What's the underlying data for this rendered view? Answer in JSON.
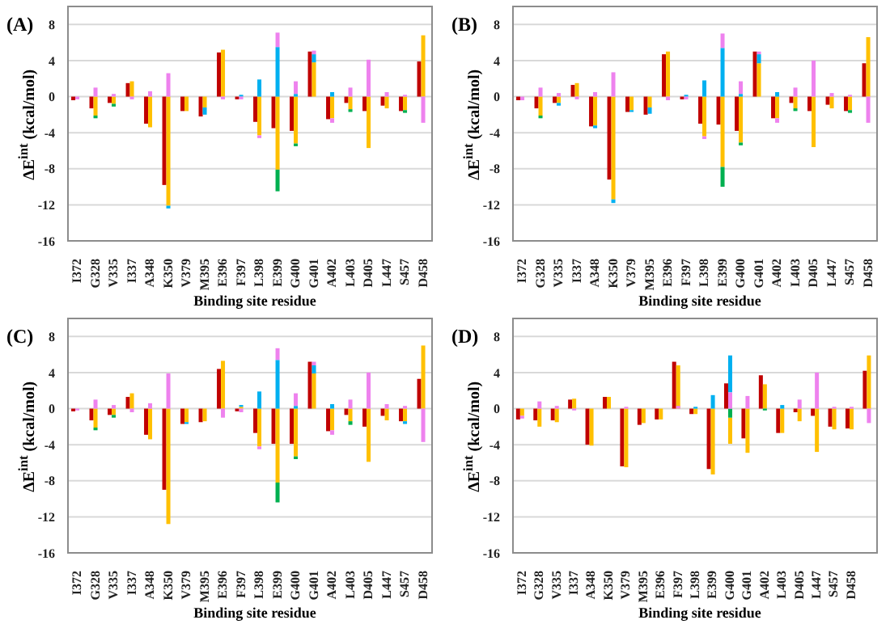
{
  "chart_data": [
    {
      "type": "bar",
      "title": "(A)",
      "xlabel": "Binding site residue",
      "ylabel": "ΔE$^{int}$ (kcal/mol)",
      "grid": "y",
      "legend": false,
      "ylim": [
        -16,
        10
      ],
      "yticks": [
        -16,
        -12,
        -8,
        -4,
        0,
        4,
        8
      ],
      "categories": [
        "I372",
        "G328",
        "V335",
        "I337",
        "A348",
        "K350",
        "V379",
        "M395",
        "E396",
        "F397",
        "L398",
        "E399",
        "G400",
        "G401",
        "A402",
        "L403",
        "D405",
        "L447",
        "S457",
        "D458"
      ],
      "series": [
        {
          "color": "#c00000",
          "values": [
            -0.4,
            -1.3,
            -0.7,
            1.5,
            -3.0,
            -9.8,
            -1.6,
            -2.2,
            4.9,
            -0.3,
            -2.8,
            -3.5,
            -3.8,
            5.0,
            -2.5,
            -0.7,
            -1.6,
            -1.0,
            -1.6,
            3.9
          ]
        },
        {
          "color": "#ffc000",
          "values": [
            null,
            -2.1,
            -0.8,
            1.7,
            -3.4,
            -12.1,
            -1.6,
            -1.2,
            5.2,
            null,
            -4.3,
            -8.1,
            -5.2,
            3.8,
            -2.4,
            -1.4,
            -5.7,
            -1.3,
            -1.5,
            6.8
          ],
          "base": [
            null,
            0,
            0,
            0,
            0,
            0,
            0,
            0,
            0,
            null,
            0,
            0,
            0,
            0,
            0,
            0,
            0,
            0,
            0,
            0
          ]
        },
        {
          "color": "#00b050",
          "values": [
            null,
            -0.3,
            -0.3,
            null,
            null,
            null,
            null,
            null,
            null,
            null,
            null,
            -2.4,
            -0.3,
            null,
            null,
            -0.3,
            null,
            null,
            -0.3,
            null
          ],
          "base": [
            null,
            -2.1,
            -0.8,
            null,
            null,
            null,
            null,
            null,
            null,
            null,
            null,
            -8.1,
            -5.2,
            null,
            null,
            -1.4,
            null,
            null,
            -1.5,
            null
          ]
        },
        {
          "color": "#00b0f0",
          "values": [
            null,
            null,
            null,
            null,
            null,
            -0.3,
            null,
            -0.8,
            null,
            0.2,
            1.9,
            5.5,
            0.3,
            0.9,
            0.5,
            null,
            null,
            null,
            null,
            null
          ],
          "base": [
            null,
            null,
            null,
            null,
            null,
            -12.1,
            null,
            -1.2,
            null,
            0,
            0,
            0,
            0,
            3.8,
            0,
            null,
            null,
            null,
            null,
            null
          ]
        },
        {
          "color": "#ee82ee",
          "values": [
            -0.3,
            1.0,
            0.3,
            -0.3,
            0.6,
            2.6,
            null,
            null,
            -0.3,
            -0.3,
            -0.3,
            1.6,
            1.4,
            0.4,
            -0.5,
            1.0,
            4.1,
            0.5,
            0.2,
            -2.9
          ],
          "base": [
            0,
            0,
            0,
            0,
            0,
            0,
            null,
            null,
            0,
            0,
            -4.3,
            5.5,
            0.3,
            4.7,
            -2.4,
            0,
            0,
            0,
            0,
            0
          ]
        }
      ]
    },
    {
      "type": "bar",
      "title": "(B)",
      "xlabel": "Binding site residue",
      "ylabel": "ΔE$^{int}$ (kcal/mol)",
      "grid": "y",
      "legend": false,
      "ylim": [
        -16,
        10
      ],
      "yticks": [
        -16,
        -12,
        -8,
        -4,
        0,
        4,
        8
      ],
      "categories": [
        "I372",
        "G328",
        "V335",
        "I337",
        "A348",
        "K350",
        "V379",
        "M395",
        "E396",
        "F397",
        "L398",
        "E399",
        "G400",
        "G401",
        "A402",
        "L403",
        "D405",
        "L447",
        "S457",
        "D458"
      ],
      "series": [
        {
          "color": "#c00000",
          "values": [
            -0.4,
            -1.3,
            -0.7,
            1.3,
            -3.3,
            -9.2,
            -1.7,
            -2.0,
            4.7,
            -0.3,
            -3.0,
            -3.1,
            -3.8,
            5.0,
            -2.4,
            -0.7,
            -1.6,
            -0.9,
            -1.6,
            3.7
          ]
        },
        {
          "color": "#ffc000",
          "values": [
            null,
            -2.1,
            -0.7,
            1.5,
            -3.2,
            -11.4,
            -1.5,
            -1.2,
            5.0,
            null,
            -4.4,
            -7.8,
            -5.1,
            3.7,
            -2.4,
            -1.3,
            -5.6,
            -1.3,
            -1.5,
            6.6
          ],
          "base": [
            null,
            0,
            0,
            0,
            0,
            0,
            0,
            0,
            0,
            null,
            0,
            0,
            0,
            0,
            0,
            0,
            0,
            0,
            0,
            0
          ]
        },
        {
          "color": "#00b050",
          "values": [
            null,
            -0.3,
            null,
            null,
            null,
            null,
            null,
            null,
            null,
            null,
            null,
            -2.2,
            -0.3,
            null,
            null,
            -0.3,
            null,
            null,
            -0.3,
            null
          ],
          "base": [
            null,
            -2.1,
            null,
            null,
            null,
            null,
            null,
            null,
            null,
            null,
            null,
            -7.8,
            -5.1,
            null,
            null,
            -1.3,
            null,
            null,
            -1.5,
            null
          ]
        },
        {
          "color": "#00b0f0",
          "values": [
            null,
            null,
            -0.3,
            null,
            -0.3,
            -0.4,
            -0.2,
            -0.7,
            null,
            0.2,
            1.8,
            5.4,
            0.3,
            1.0,
            0.5,
            null,
            null,
            null,
            null,
            null
          ],
          "base": [
            null,
            null,
            -0.7,
            null,
            -3.2,
            -11.4,
            -1.5,
            -1.2,
            null,
            0,
            0,
            0,
            0,
            3.7,
            0,
            null,
            null,
            null,
            null,
            null
          ]
        },
        {
          "color": "#ee82ee",
          "values": [
            -0.4,
            1.0,
            0.4,
            -0.3,
            0.5,
            2.7,
            null,
            null,
            -0.4,
            -0.3,
            -0.3,
            1.6,
            1.4,
            0.3,
            -0.5,
            1.0,
            4.0,
            0.4,
            0.2,
            -2.9
          ],
          "base": [
            0,
            0,
            0,
            0,
            0,
            0,
            null,
            null,
            0,
            0,
            -4.4,
            5.4,
            0.3,
            4.7,
            -2.4,
            0,
            0,
            0,
            0,
            0
          ]
        }
      ]
    },
    {
      "type": "bar",
      "title": "(C)",
      "xlabel": "Binding site residue",
      "ylabel": "ΔE$^{int}$ (kcal/mol)",
      "grid": "y",
      "legend": false,
      "ylim": [
        -16,
        10
      ],
      "yticks": [
        -16,
        -12,
        -8,
        -4,
        0,
        4,
        8
      ],
      "categories": [
        "I372",
        "G328",
        "V335",
        "I337",
        "A348",
        "K350",
        "V379",
        "M395",
        "E396",
        "F397",
        "L398",
        "E399",
        "G400",
        "G401",
        "A402",
        "L403",
        "D405",
        "L447",
        "S457",
        "D458"
      ],
      "series": [
        {
          "color": "#c00000",
          "values": [
            -0.3,
            -1.3,
            -0.7,
            1.3,
            -2.9,
            -9.0,
            -1.7,
            -1.5,
            4.4,
            -0.3,
            -2.7,
            -3.9,
            -3.9,
            5.2,
            -2.5,
            -0.7,
            -2.0,
            -0.8,
            -1.4,
            3.3
          ]
        },
        {
          "color": "#ffc000",
          "values": [
            null,
            -2.1,
            -0.7,
            1.7,
            -3.4,
            -12.8,
            -1.5,
            -1.4,
            5.3,
            0.2,
            -4.2,
            -8.2,
            -5.3,
            3.9,
            -2.4,
            -1.4,
            -5.9,
            -1.3,
            -1.4,
            7.0
          ],
          "base": [
            null,
            0,
            0,
            0,
            0,
            0,
            0,
            0,
            0,
            0,
            0,
            0,
            0,
            0,
            0,
            0,
            0,
            0,
            0,
            0
          ]
        },
        {
          "color": "#00b050",
          "values": [
            null,
            -0.3,
            -0.3,
            null,
            null,
            null,
            null,
            null,
            null,
            null,
            null,
            -2.2,
            -0.3,
            null,
            null,
            -0.4,
            null,
            null,
            null,
            null
          ],
          "base": [
            null,
            -2.1,
            -0.7,
            null,
            null,
            null,
            null,
            null,
            null,
            null,
            null,
            -8.2,
            -5.3,
            null,
            null,
            -1.4,
            null,
            null,
            null,
            null
          ]
        },
        {
          "color": "#00b0f0",
          "values": [
            null,
            null,
            null,
            null,
            null,
            null,
            -0.2,
            null,
            null,
            0.2,
            1.9,
            5.4,
            0.3,
            0.9,
            0.5,
            null,
            null,
            null,
            -0.3,
            null
          ],
          "base": [
            null,
            null,
            null,
            null,
            null,
            null,
            -1.5,
            null,
            null,
            0.2,
            0,
            0,
            0,
            3.9,
            0,
            null,
            null,
            null,
            -1.4,
            null
          ]
        },
        {
          "color": "#ee82ee",
          "values": [
            -0.2,
            1.0,
            0.4,
            -0.4,
            0.6,
            3.9,
            null,
            null,
            -1.0,
            -0.4,
            -0.3,
            1.3,
            1.4,
            0.4,
            -0.5,
            1.0,
            4.0,
            0.5,
            0.3,
            -3.7
          ],
          "base": [
            0,
            0,
            0,
            0,
            0,
            0,
            null,
            null,
            0,
            0,
            -4.2,
            5.4,
            0.3,
            4.8,
            -2.4,
            0,
            0,
            0,
            0,
            0
          ]
        }
      ]
    },
    {
      "type": "bar",
      "title": "(D)",
      "xlabel": "Binding site residue",
      "ylabel": "ΔE$^{int}$ (kcal/mol)",
      "grid": "y",
      "legend": false,
      "ylim": [
        -16,
        10
      ],
      "yticks": [
        -16,
        -12,
        -8,
        -4,
        0,
        4,
        8
      ],
      "categories": [
        "I372",
        "G328",
        "V335",
        "I337",
        "A348",
        "K350",
        "V379",
        "M395",
        "E396",
        "F397",
        "L398",
        "E399",
        "G400",
        "G401",
        "A402",
        "L403",
        "D405",
        "L447",
        "S457",
        "D458",
        null
      ],
      "series": [
        {
          "color": "#c00000",
          "values": [
            -1.2,
            -1.3,
            -1.3,
            1.0,
            -4.0,
            1.3,
            -6.4,
            -1.8,
            -1.2,
            5.2,
            -0.6,
            -6.7,
            2.8,
            -3.3,
            3.7,
            -2.7,
            -0.4,
            -0.8,
            -2.0,
            -2.2,
            4.2
          ]
        },
        {
          "color": "#ffc000",
          "values": [
            -0.8,
            -2.0,
            -1.5,
            1.1,
            -4.1,
            1.3,
            -6.5,
            -1.6,
            -1.2,
            4.8,
            -0.6,
            -7.3,
            -2.9,
            -4.9,
            2.7,
            -2.7,
            -1.4,
            -4.8,
            -2.3,
            -2.3,
            5.9
          ],
          "base": [
            0,
            0,
            0,
            0,
            0,
            0,
            0,
            0,
            0,
            0,
            0,
            0,
            -1.0,
            0,
            0,
            0,
            0,
            0,
            0,
            0,
            0
          ]
        },
        {
          "color": "#00b050",
          "values": [
            null,
            null,
            null,
            null,
            null,
            null,
            null,
            null,
            null,
            null,
            null,
            null,
            -1.0,
            null,
            -0.2,
            null,
            null,
            null,
            null,
            null,
            null
          ],
          "base": [
            null,
            null,
            null,
            null,
            null,
            null,
            null,
            null,
            null,
            null,
            null,
            null,
            0,
            null,
            0,
            null,
            null,
            null,
            null,
            null,
            null
          ]
        },
        {
          "color": "#00b0f0",
          "values": [
            null,
            null,
            null,
            null,
            null,
            null,
            null,
            null,
            null,
            null,
            0.2,
            1.5,
            4.1,
            null,
            null,
            0.4,
            null,
            null,
            null,
            null,
            null
          ],
          "base": [
            null,
            null,
            null,
            null,
            null,
            null,
            null,
            null,
            null,
            null,
            0,
            0,
            1.8,
            null,
            null,
            0,
            null,
            null,
            null,
            null,
            null
          ]
        },
        {
          "color": "#ee82ee",
          "values": [
            -0.3,
            0.8,
            0.3,
            -0.2,
            null,
            null,
            0.2,
            null,
            null,
            0.3,
            null,
            null,
            1.8,
            1.4,
            null,
            null,
            1.0,
            4.0,
            0.2,
            0.2,
            -1.6
          ],
          "base": [
            -0.8,
            0,
            0,
            0,
            null,
            null,
            0,
            null,
            null,
            0,
            null,
            null,
            0,
            0,
            null,
            null,
            0,
            0,
            0,
            0,
            0
          ]
        }
      ]
    }
  ]
}
